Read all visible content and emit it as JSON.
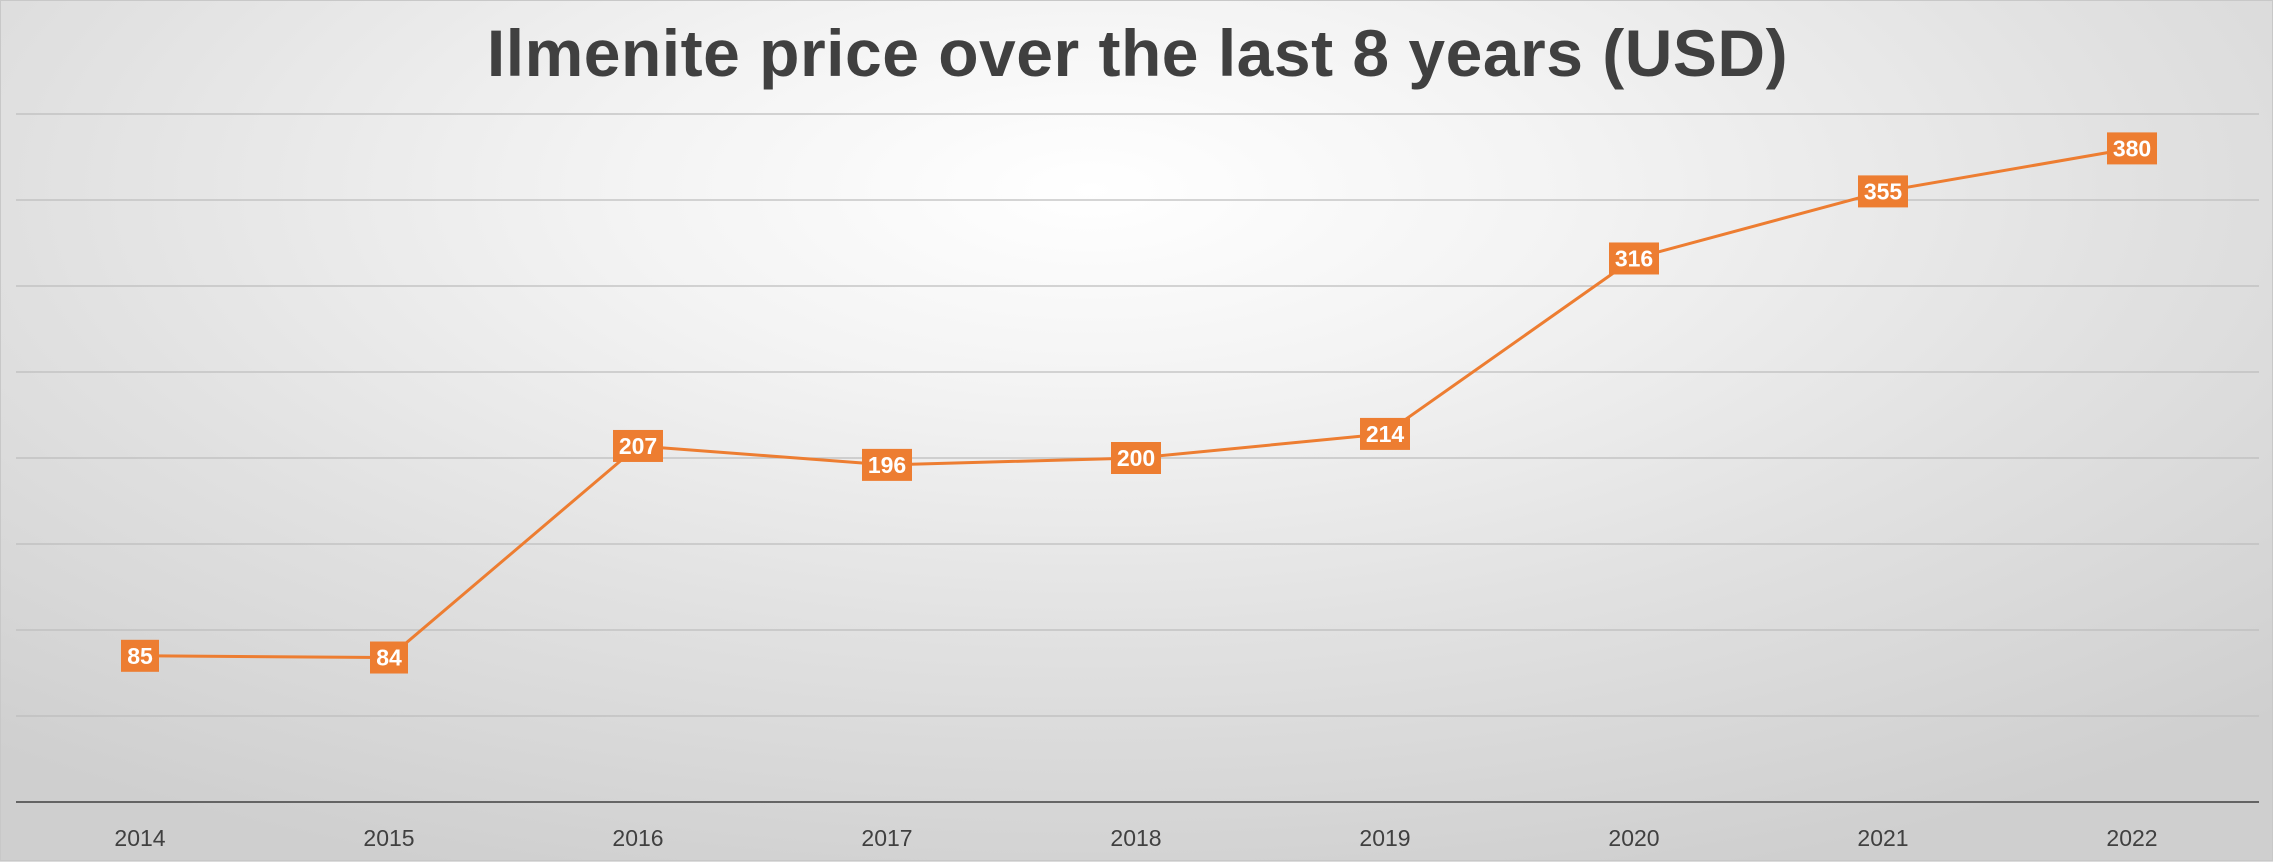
{
  "chart_data": {
    "type": "line",
    "title": "Ilmenite price over the last 8 years (USD)",
    "xlabel": "",
    "ylabel": "",
    "categories": [
      "2014",
      "2015",
      "2016",
      "2017",
      "2018",
      "2019",
      "2020",
      "2021",
      "2022"
    ],
    "series": [
      {
        "values": [
          85,
          84,
          207,
          196,
          200,
          214,
          316,
          355,
          380
        ]
      }
    ],
    "ylim": [
      0,
      400
    ],
    "grid": true,
    "data_labels": true,
    "legend": "none",
    "colors": {
      "line": "#ED7D31",
      "gridline": "#bdbdbd",
      "axis": "#404040",
      "label_text": "#ffffff"
    }
  }
}
